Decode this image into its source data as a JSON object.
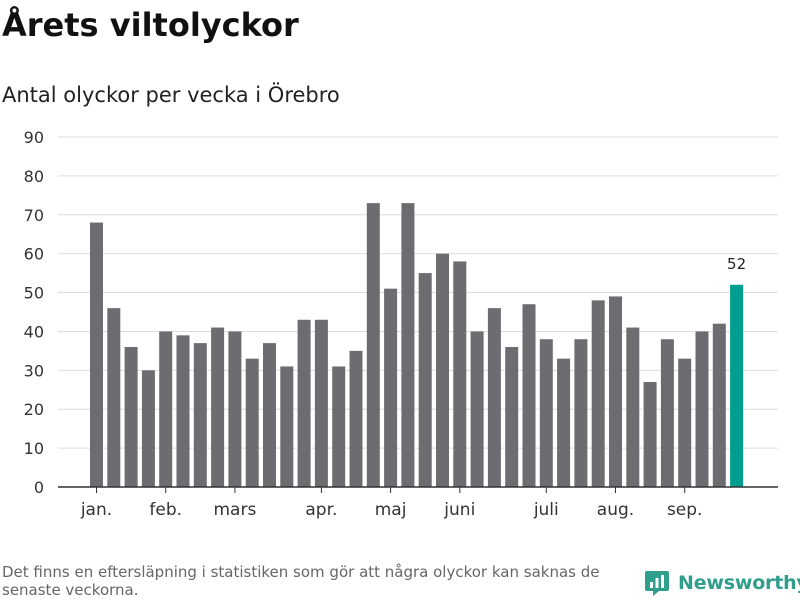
{
  "title": "Årets viltolyckor",
  "subtitle": "Antal olyckor per vecka i Örebro",
  "footnote": "Det finns en eftersläpning i statistiken som gör att några olyckor kan saknas de senaste veckorna.",
  "brand": {
    "name": "Newsworthy",
    "icon": "newsworthy-logo-icon",
    "color": "#2f9f8c"
  },
  "chart_data": {
    "type": "bar",
    "title": "Antal olyckor per vecka i Örebro",
    "xlabel": "",
    "ylabel": "",
    "ylim": [
      0,
      90
    ],
    "yticks": [
      0,
      10,
      20,
      30,
      40,
      50,
      60,
      70,
      80,
      90
    ],
    "grid": true,
    "bar_color": "#6d6c70",
    "highlight_color": "#009e8e",
    "highlight_index": 37,
    "highlight_label": "52",
    "values": [
      68,
      46,
      36,
      30,
      40,
      39,
      37,
      41,
      40,
      33,
      37,
      31,
      43,
      43,
      31,
      35,
      73,
      51,
      73,
      55,
      60,
      58,
      40,
      46,
      36,
      47,
      38,
      33,
      38,
      48,
      49,
      41,
      27,
      38,
      33,
      40,
      42,
      52
    ],
    "month_labels": [
      {
        "label": "jan.",
        "index": 0
      },
      {
        "label": "feb.",
        "index": 4
      },
      {
        "label": "mars",
        "index": 8
      },
      {
        "label": "apr.",
        "index": 13
      },
      {
        "label": "maj",
        "index": 17
      },
      {
        "label": "juni",
        "index": 21
      },
      {
        "label": "juli",
        "index": 26
      },
      {
        "label": "aug.",
        "index": 30
      },
      {
        "label": "sep.",
        "index": 34
      }
    ]
  }
}
